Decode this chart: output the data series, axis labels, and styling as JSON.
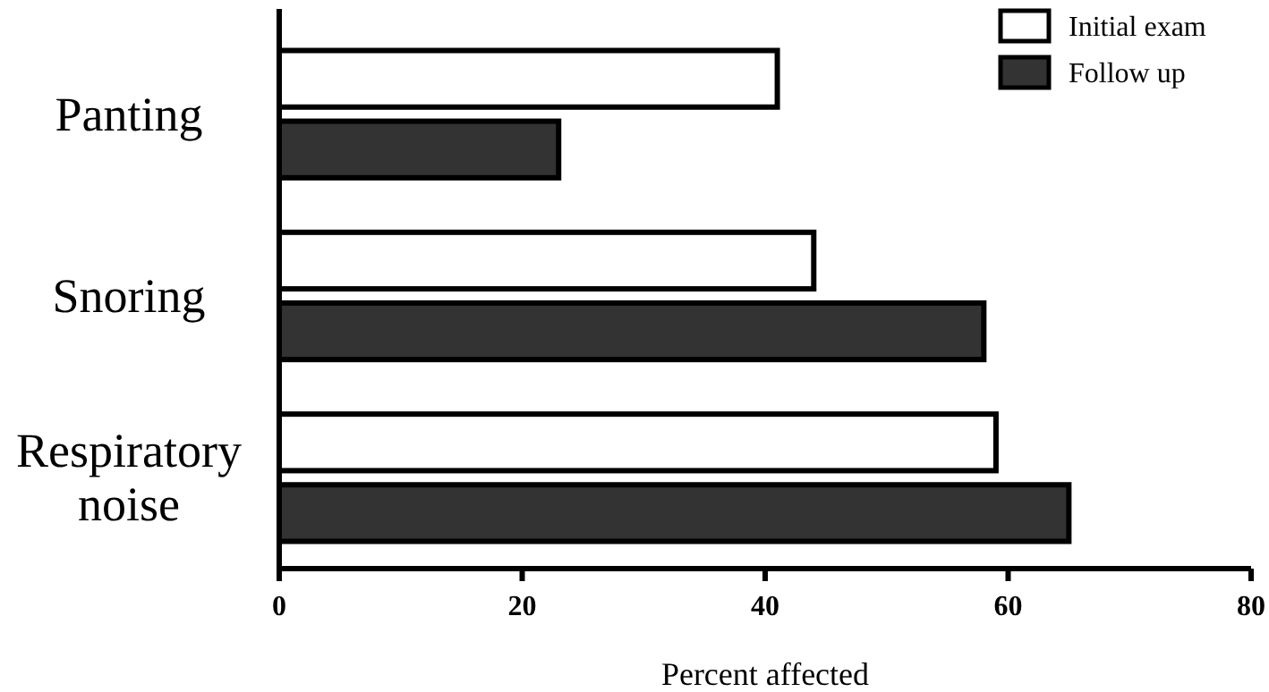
{
  "chart_data": {
    "type": "bar",
    "orientation": "horizontal",
    "categories": [
      "Panting",
      "Snoring",
      "Respiratory noise"
    ],
    "xlabel": "Percent affected",
    "xlim": [
      0,
      80
    ],
    "xticks": [
      0,
      20,
      40,
      60,
      80
    ],
    "legend": "top right",
    "grid": false,
    "series": [
      {
        "name": "Initial exam",
        "color": "#ffffff",
        "values": [
          41,
          44,
          59
        ]
      },
      {
        "name": "Follow up",
        "color": "#333333",
        "values": [
          23,
          58,
          65
        ]
      }
    ]
  }
}
